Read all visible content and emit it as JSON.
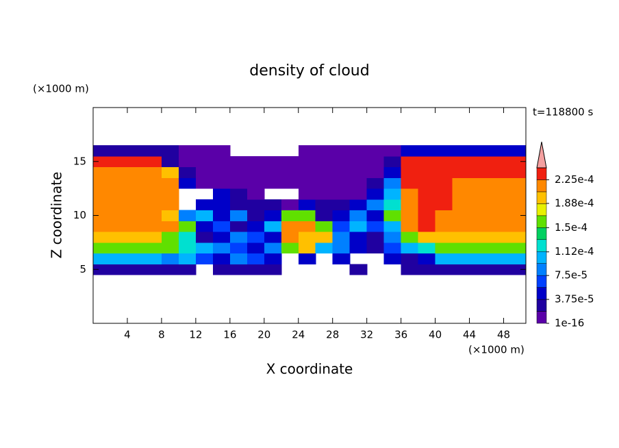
{
  "chart_data": {
    "type": "contour",
    "title": "density of cloud",
    "x_label": "X coordinate",
    "y_label": "Z coordinate",
    "x_unit": "(×1000 m)",
    "y_unit": "(×1000 m)",
    "annotation": "t=118800 s",
    "xlim": [
      0,
      50.6
    ],
    "ylim": [
      0,
      20
    ],
    "xticks": [
      4,
      8,
      12,
      16,
      20,
      24,
      28,
      32,
      36,
      40,
      44,
      48
    ],
    "yticks": [
      5,
      10,
      15
    ],
    "x": [
      1,
      3,
      5,
      7,
      9,
      11,
      13,
      15,
      17,
      19,
      21,
      23,
      25,
      27,
      29,
      31,
      33,
      35,
      37,
      39,
      41,
      43,
      45,
      47,
      49
    ],
    "y": [
      5,
      6,
      7,
      8,
      9,
      10,
      11,
      12,
      13,
      14,
      15,
      16
    ],
    "z": [
      [
        3e-05,
        3e-05,
        3e-05,
        3e-05,
        3e-05,
        3e-05,
        null,
        3e-05,
        3e-05,
        3e-05,
        3e-05,
        null,
        null,
        null,
        null,
        3e-05,
        null,
        null,
        3e-05,
        3e-05,
        3e-05,
        3e-05,
        3e-05,
        3e-05,
        3e-05
      ],
      [
        0.0001,
        0.0001,
        0.0001,
        0.0001,
        8.5e-05,
        0.0001,
        6.5e-05,
        5e-05,
        8.5e-05,
        6.5e-05,
        5e-05,
        null,
        5e-05,
        null,
        5e-05,
        null,
        null,
        5e-05,
        3e-05,
        5e-05,
        0.0001,
        0.0001,
        0.0001,
        0.0001,
        0.0001
      ],
      [
        0.00016,
        0.00016,
        0.00016,
        0.00016,
        0.00016,
        0.00012,
        0.0001,
        8.5e-05,
        6.5e-05,
        5e-05,
        8.5e-05,
        0.00016,
        0.00019,
        0.0001,
        8.5e-05,
        5e-05,
        3e-05,
        6.5e-05,
        0.0001,
        0.00012,
        0.00016,
        0.00016,
        0.00016,
        0.00016,
        0.00016
      ],
      [
        0.00019,
        0.00019,
        0.00019,
        0.00019,
        0.00016,
        0.00012,
        3e-05,
        5e-05,
        8.5e-05,
        6.5e-05,
        5e-05,
        0.00021,
        0.00019,
        0.00019,
        8.5e-05,
        5e-05,
        3e-05,
        8.5e-05,
        0.00016,
        0.00019,
        0.00019,
        0.00019,
        0.00019,
        0.00019,
        0.00019
      ],
      [
        0.00021,
        0.00021,
        0.00021,
        0.00021,
        0.00021,
        0.00016,
        5e-05,
        6.5e-05,
        3e-05,
        5e-05,
        0.0001,
        0.00021,
        0.00021,
        0.00016,
        6.5e-05,
        0.0001,
        6.5e-05,
        0.0001,
        0.00021,
        0.000225,
        0.00021,
        0.00021,
        0.00021,
        0.00021,
        0.00021
      ],
      [
        0.00021,
        0.00021,
        0.00021,
        0.00021,
        0.00019,
        8.5e-05,
        0.0001,
        5e-05,
        8.5e-05,
        3e-05,
        5e-05,
        0.00016,
        0.00016,
        3e-05,
        5e-05,
        8.5e-05,
        5e-05,
        0.00016,
        0.00021,
        0.000235,
        0.00021,
        0.00021,
        0.00021,
        0.00021,
        0.00021
      ],
      [
        0.00021,
        0.00021,
        0.00021,
        0.00021,
        0.00021,
        null,
        5e-05,
        5e-05,
        3e-05,
        3e-05,
        3e-05,
        1e-06,
        5e-05,
        3e-05,
        3e-05,
        5e-05,
        8.5e-05,
        0.00012,
        0.00021,
        0.000235,
        0.000225,
        0.00021,
        0.00021,
        0.00021,
        0.00021
      ],
      [
        0.00021,
        0.00021,
        0.00021,
        0.00021,
        0.00021,
        null,
        null,
        5e-05,
        3e-05,
        1e-06,
        null,
        null,
        1e-06,
        1e-06,
        1e-06,
        1e-06,
        5e-05,
        0.0001,
        0.00021,
        0.000225,
        0.000235,
        0.00021,
        0.00021,
        0.00021,
        0.00021
      ],
      [
        0.00021,
        0.00021,
        0.00021,
        0.00021,
        0.00021,
        5e-05,
        1e-06,
        1e-06,
        1e-06,
        1e-06,
        1e-06,
        1e-06,
        1e-06,
        1e-06,
        1e-06,
        1e-06,
        3e-05,
        8.5e-05,
        0.000225,
        0.000235,
        0.000235,
        0.00021,
        0.00021,
        0.00021,
        0.00021
      ],
      [
        0.00021,
        0.00021,
        0.00021,
        0.00021,
        0.00019,
        3e-05,
        1e-06,
        1e-06,
        1e-06,
        1e-06,
        1e-06,
        1e-06,
        1e-06,
        1e-06,
        1e-06,
        1e-06,
        1e-06,
        5e-05,
        0.000225,
        0.000235,
        0.000235,
        0.000225,
        0.000225,
        0.000225,
        0.000225
      ],
      [
        0.000225,
        0.000225,
        0.000225,
        0.000225,
        3e-05,
        1e-06,
        1e-06,
        1e-06,
        1e-06,
        1e-06,
        1e-06,
        1e-06,
        1e-06,
        1e-06,
        1e-06,
        1e-06,
        1e-06,
        3e-05,
        0.000225,
        0.000225,
        0.000225,
        0.000225,
        0.000225,
        0.000225,
        0.000225
      ],
      [
        3e-05,
        3e-05,
        3e-05,
        3e-05,
        3e-05,
        1e-06,
        1e-06,
        1e-06,
        null,
        null,
        null,
        null,
        1e-06,
        1e-06,
        1e-06,
        1e-06,
        1e-06,
        1e-06,
        5e-05,
        5e-05,
        5e-05,
        5e-05,
        5e-05,
        5e-05,
        5e-05
      ]
    ],
    "levels": [
      1e-16,
      1.875e-05,
      3.75e-05,
      5.625e-05,
      7.5e-05,
      9.375e-05,
      0.0001125,
      0.00013125,
      0.00015,
      0.00016875,
      0.0001875,
      0.00020625,
      0.000225,
      0.00024375
    ],
    "colors": [
      "#5a00a8",
      "#2000a0",
      "#0000c8",
      "#0040ff",
      "#0080ff",
      "#00b4ff",
      "#00e0d0",
      "#00d060",
      "#60e000",
      "#e8f000",
      "#ffc000",
      "#ff8800",
      "#f02010"
    ],
    "extend_color": "#f4a0a0",
    "colorbar_ticks": [
      {
        "value": 1e-16,
        "label": "1e-16"
      },
      {
        "value": 3.75e-05,
        "label": "3.75e-5"
      },
      {
        "value": 7.5e-05,
        "label": "7.5e-5"
      },
      {
        "value": 0.000112,
        "label": "1.12e-4"
      },
      {
        "value": 0.00015,
        "label": "1.5e-4"
      },
      {
        "value": 0.000188,
        "label": "1.88e-4"
      },
      {
        "value": 0.000225,
        "label": "2.25e-4"
      }
    ]
  }
}
